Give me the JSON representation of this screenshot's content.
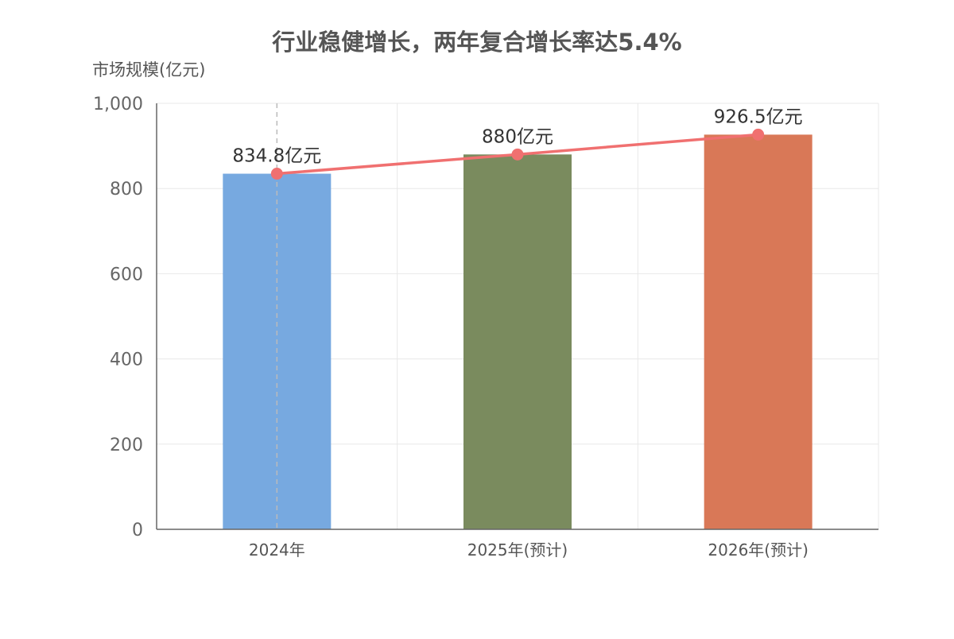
{
  "chart_data": {
    "type": "bar",
    "title": "行业稳健增长，两年复合增长率达5.4%",
    "ylabel": "市场规模(亿元)",
    "xlabel": "",
    "categories": [
      "2024年",
      "2025年(预计)",
      "2026年(预计)"
    ],
    "values": [
      834.8,
      880,
      926.5
    ],
    "data_labels": [
      "834.8亿元",
      "880亿元",
      "926.5亿元"
    ],
    "bar_colors": [
      "#77a9e0",
      "#7a8b5e",
      "#d97857"
    ],
    "line_color": "#f07070",
    "line_overlay": true,
    "ylim": [
      0,
      1000
    ],
    "yticks": [
      0,
      200,
      400,
      600,
      800,
      1000
    ],
    "ytick_labels": [
      "0",
      "200",
      "400",
      "600",
      "800",
      "1,000"
    ],
    "grid": true,
    "legend": "none"
  }
}
